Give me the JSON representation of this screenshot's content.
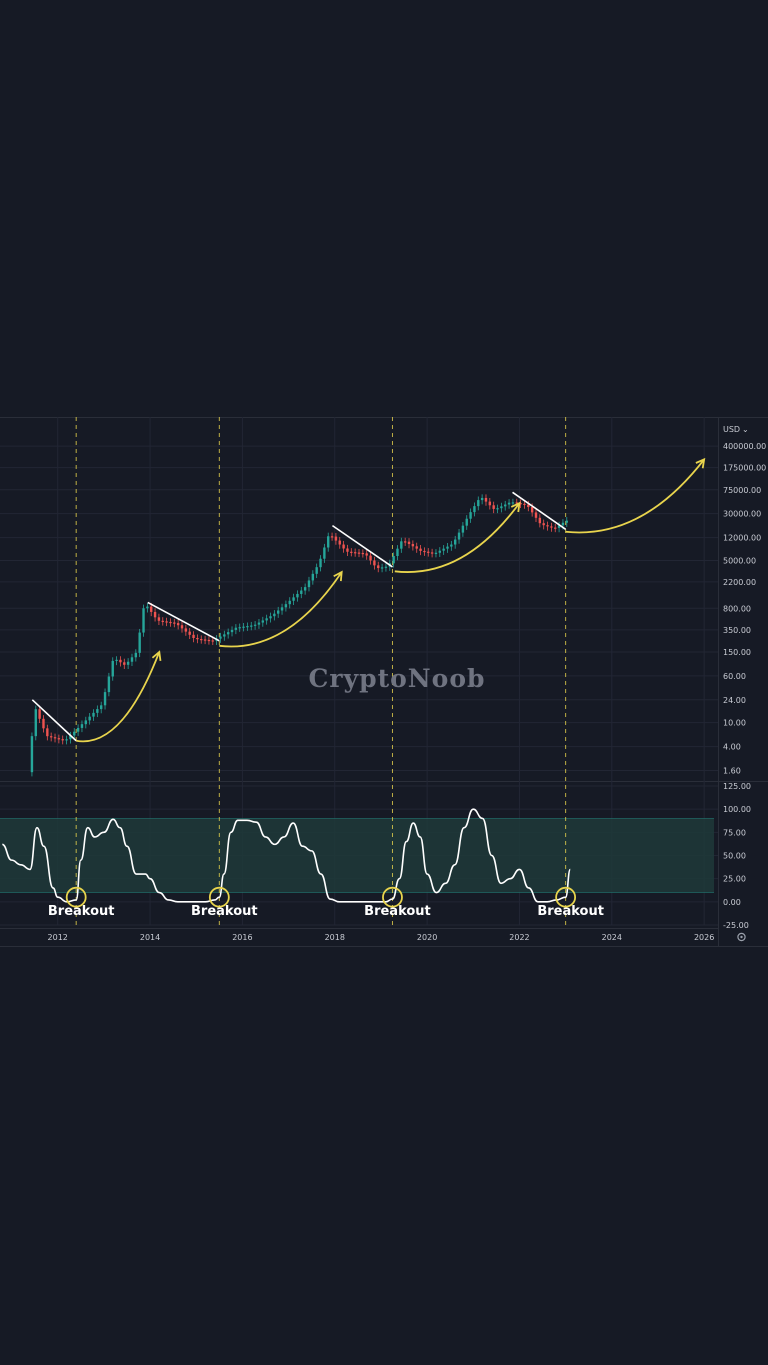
{
  "colors": {
    "background": "#161a25",
    "grid": "#222634",
    "bullish": "#26a69a",
    "bearish": "#ef5350",
    "trendline": "#ffffff",
    "annotation": "#e8d44d",
    "oscillator": "#ffffff",
    "band": "#1e3a3a",
    "band_edge": "#26a69a"
  },
  "watermark": "CryptoNoob",
  "currency_label": "USD",
  "settings_icon": "gear-icon",
  "chart_data": [
    {
      "type": "line",
      "subtype": "candlestick (monthly BTC price, log scale)",
      "scale": "log",
      "currency": "USD",
      "y_ticks": [
        "400000.00",
        "175000.00",
        "75000.00",
        "30000.00",
        "12000.00",
        "5000.00",
        "2200.00",
        "800.00",
        "350.00",
        "150.00",
        "60.00",
        "24.00",
        "10.00",
        "4.00",
        "1.60"
      ],
      "ylim": [
        1.2,
        450000
      ],
      "x_ticks": [
        "2012",
        "2014",
        "2016",
        "2018",
        "2020",
        "2022",
        "2024",
        "2026"
      ],
      "xlim": [
        2010.75,
        2026.3
      ],
      "grid": true,
      "legend": "none",
      "series": [
        {
          "x": [
            2011.4,
            2011.55,
            2011.8,
            2012.2,
            2012.6,
            2013.0,
            2013.25,
            2013.5,
            2013.75,
            2013.92,
            2014.2,
            2014.6,
            2015.0,
            2015.4,
            2015.6,
            2015.9,
            2016.3,
            2016.7,
            2017.0,
            2017.4,
            2017.7,
            2017.92,
            2018.3,
            2018.7,
            2018.95,
            2019.2,
            2019.5,
            2019.9,
            2020.2,
            2020.6,
            2020.95,
            2021.2,
            2021.5,
            2021.85,
            2022.2,
            2022.5,
            2022.8,
            2023.05
          ],
          "y": [
            1.5,
            18,
            6,
            5,
            10,
            20,
            120,
            90,
            150,
            1000,
            500,
            450,
            250,
            230,
            280,
            380,
            420,
            620,
            960,
            1800,
            4500,
            14000,
            7000,
            6500,
            3700,
            4000,
            11000,
            7200,
            6500,
            9500,
            29000,
            58000,
            35000,
            47000,
            42000,
            20000,
            17000,
            23000
          ]
        }
      ],
      "trendlines": [
        {
          "from": [
            2011.45,
            24
          ],
          "to": [
            2012.4,
            5
          ]
        },
        {
          "from": [
            2013.95,
            1000
          ],
          "to": [
            2015.5,
            230
          ]
        },
        {
          "from": [
            2017.95,
            19000
          ],
          "to": [
            2019.25,
            3900
          ]
        },
        {
          "from": [
            2021.85,
            68000
          ],
          "to": [
            2023.0,
            16500
          ]
        }
      ],
      "arrows": [
        {
          "from": [
            2012.4,
            5
          ],
          "to": [
            2014.2,
            150
          ]
        },
        {
          "from": [
            2015.5,
            190
          ],
          "to": [
            2018.15,
            3200
          ]
        },
        {
          "from": [
            2019.3,
            3300
          ],
          "to": [
            2022.0,
            45000
          ]
        },
        {
          "from": [
            2023.0,
            15000
          ],
          "to": [
            2026.0,
            240000
          ]
        }
      ],
      "vlines": [
        2012.4,
        2015.5,
        2019.25,
        2023.0
      ]
    },
    {
      "type": "line",
      "subtype": "oscillator",
      "y_ticks": [
        "125.00",
        "100.00",
        "75.00",
        "50.00",
        "25.00",
        "0.00",
        "-25.00"
      ],
      "ylim": [
        -25,
        125
      ],
      "band": [
        10,
        90
      ],
      "series": [
        {
          "x": [
            2010.8,
            2011.0,
            2011.2,
            2011.4,
            2011.55,
            2011.7,
            2011.9,
            2012.0,
            2012.2,
            2012.4,
            2012.5,
            2012.65,
            2012.8,
            2013.0,
            2013.2,
            2013.35,
            2013.5,
            2013.7,
            2013.9,
            2014.0,
            2014.2,
            2014.4,
            2014.6,
            2014.8,
            2015.0,
            2015.2,
            2015.4,
            2015.5,
            2015.6,
            2015.75,
            2015.9,
            2016.1,
            2016.3,
            2016.5,
            2016.7,
            2016.9,
            2017.1,
            2017.3,
            2017.5,
            2017.7,
            2017.9,
            2018.1,
            2018.3,
            2018.5,
            2018.7,
            2018.9,
            2019.1,
            2019.25,
            2019.4,
            2019.55,
            2019.7,
            2019.85,
            2020.0,
            2020.2,
            2020.4,
            2020.6,
            2020.8,
            2021.0,
            2021.2,
            2021.4,
            2021.6,
            2021.8,
            2022.0,
            2022.2,
            2022.4,
            2022.6,
            2022.8,
            2023.0,
            2023.1
          ],
          "y": [
            62,
            45,
            40,
            35,
            80,
            60,
            15,
            5,
            0,
            2,
            45,
            80,
            70,
            75,
            89,
            80,
            60,
            30,
            30,
            25,
            10,
            2,
            0,
            0,
            0,
            0,
            2,
            5,
            30,
            75,
            88,
            88,
            86,
            70,
            62,
            70,
            85,
            60,
            55,
            30,
            3,
            0,
            0,
            0,
            0,
            0,
            0,
            3,
            25,
            65,
            85,
            70,
            30,
            10,
            20,
            40,
            80,
            100,
            90,
            50,
            20,
            25,
            35,
            15,
            0,
            0,
            2,
            5,
            35
          ]
        }
      ],
      "markers": [
        2012.4,
        2015.5,
        2019.25,
        2023.0
      ],
      "annotations": [
        "Breakout",
        "Breakout",
        "Breakout",
        "Breakout"
      ]
    }
  ]
}
